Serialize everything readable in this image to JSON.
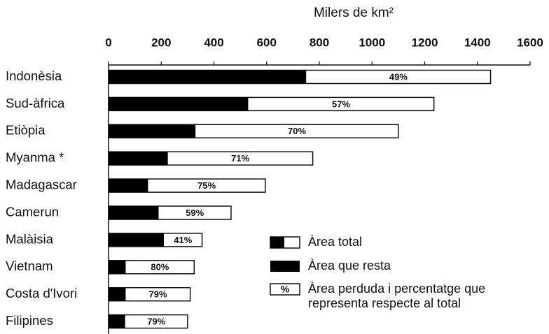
{
  "chart_data": {
    "type": "bar",
    "orientation": "horizontal",
    "xlabel": "Milers de km²",
    "categories": [
      "Indonèsia",
      "Sud-àfrica",
      "Etiòpia",
      "Myanma *",
      "Madagascar",
      "Camerun",
      "Malàisia",
      "Vietnam",
      "Costa d'Ivori",
      "Filipines"
    ],
    "xlim": [
      0,
      1600
    ],
    "xticks": [
      0,
      200,
      400,
      600,
      800,
      1000,
      1200,
      1400,
      1600
    ],
    "series": [
      {
        "name": "Àrea total",
        "color": "#ffffff",
        "values": [
          1450,
          1235,
          1100,
          775,
          595,
          465,
          355,
          325,
          310,
          300
        ]
      },
      {
        "name": "Àrea que resta",
        "color": "#000000",
        "values": [
          750,
          530,
          330,
          225,
          150,
          190,
          210,
          65,
          65,
          63
        ]
      },
      {
        "name": "Àrea perduda i percentatge que representa respecte al total",
        "symbol": "%",
        "color": "#ffffff",
        "values": [
          49,
          57,
          70,
          71,
          75,
          59,
          41,
          80,
          79,
          79
        ],
        "value_labels": [
          "49%",
          "57%",
          "70%",
          "71%",
          "75%",
          "59%",
          "41%",
          "80%",
          "79%",
          "79%"
        ]
      }
    ]
  }
}
